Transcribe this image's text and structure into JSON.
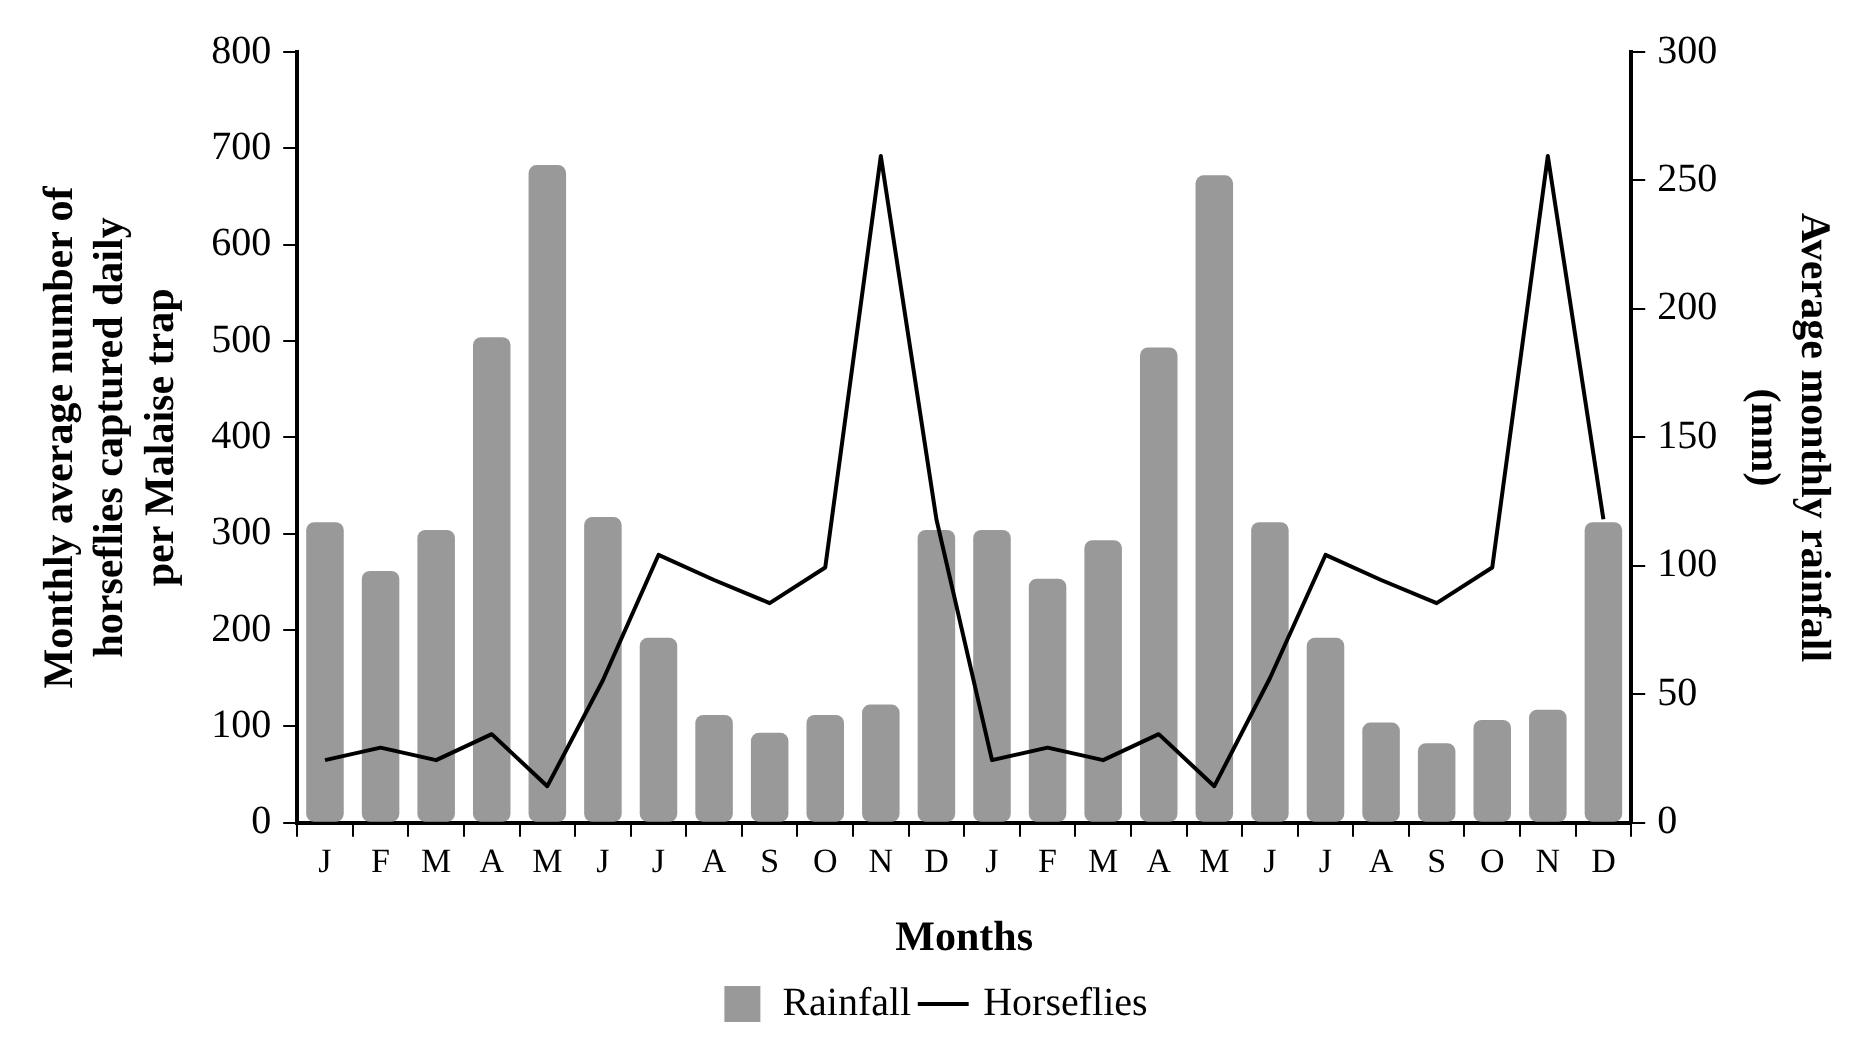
{
  "chart_data": {
    "type": "bar",
    "xlabel": "Months",
    "ylabel": "Monthly average number of horseflies captured daily per Malaise trap",
    "y2label": "Average monthly rainfall (mm)",
    "categories": [
      "J",
      "F",
      "M",
      "A",
      "M",
      "J",
      "J",
      "A",
      "S",
      "O",
      "N",
      "D",
      "J",
      "F",
      "M",
      "A",
      "M",
      "J",
      "J",
      "A",
      "S",
      "O",
      "N",
      "D"
    ],
    "series": [
      {
        "name": "Rainfall",
        "axis": "y2",
        "color": "#999999",
        "values": [
          117,
          98,
          114,
          189,
          256,
          119,
          72,
          42,
          35,
          42,
          46,
          114,
          114,
          95,
          110,
          185,
          252,
          117,
          72,
          39,
          31,
          40,
          44,
          117
        ]
      },
      {
        "name": "Horseflies",
        "type": "line",
        "axis": "y",
        "color": "#000000",
        "values": [
          65,
          78,
          65,
          92,
          38,
          148,
          278,
          252,
          228,
          265,
          692,
          315,
          65,
          78,
          65,
          92,
          38,
          150,
          278,
          252,
          228,
          265,
          692,
          315
        ]
      }
    ],
    "ylim": [
      0,
      800
    ],
    "yticks": [
      0,
      100,
      200,
      300,
      400,
      500,
      600,
      700,
      800
    ],
    "y2lim": [
      0,
      300
    ],
    "y2ticks": [
      0,
      50,
      100,
      150,
      200,
      250,
      300
    ],
    "grid": false,
    "legend": "bottom",
    "marker": "none",
    "line_style": "solid"
  }
}
